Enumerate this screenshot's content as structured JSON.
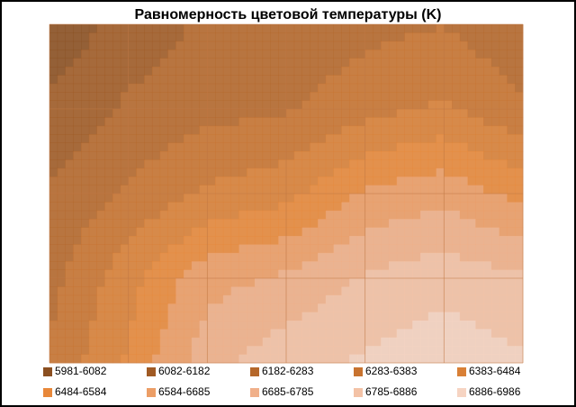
{
  "chart_data": {
    "type": "contour",
    "title": "Равномерность  цветовой температуры (K)",
    "levels": [
      5981,
      6082,
      6182,
      6283,
      6383,
      6484,
      6584,
      6685,
      6785,
      6886,
      6986
    ],
    "series": [
      {
        "name": "5981-6082",
        "color": "#8b4f20"
      },
      {
        "name": "6082-6182",
        "color": "#a05a24"
      },
      {
        "name": "6182-6283",
        "color": "#b5672a"
      },
      {
        "name": "6283-6383",
        "color": "#c8732f"
      },
      {
        "name": "6383-6484",
        "color": "#d98036"
      },
      {
        "name": "6484-6584",
        "color": "#e8883a"
      },
      {
        "name": "6584-6685",
        "color": "#ec9e66"
      },
      {
        "name": "6685-6785",
        "color": "#f0b08a"
      },
      {
        "name": "6785-6886",
        "color": "#f3c2a6"
      },
      {
        "name": "6886-6986",
        "color": "#f6d4c2"
      }
    ],
    "z": [
      [
        6010,
        6120,
        6200,
        6200,
        6250,
        6280,
        6200
      ],
      [
        6100,
        6200,
        6250,
        6270,
        6350,
        6400,
        6300
      ],
      [
        6200,
        6300,
        6400,
        6450,
        6600,
        6650,
        6550
      ],
      [
        6250,
        6450,
        6650,
        6700,
        6800,
        6850,
        6800
      ],
      [
        6300,
        6500,
        6750,
        6850,
        6900,
        6950,
        6900
      ]
    ]
  }
}
